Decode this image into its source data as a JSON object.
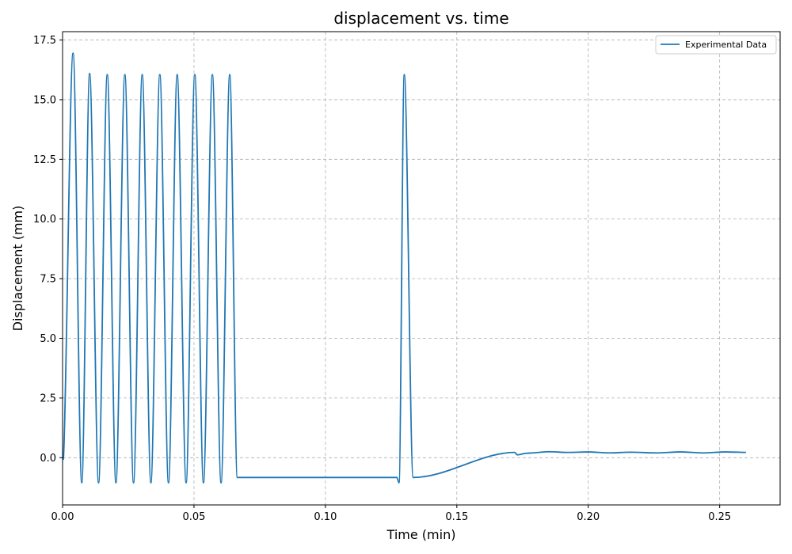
{
  "chart_data": {
    "type": "line",
    "title": "displacement vs. time",
    "xlabel": "Time (min)",
    "ylabel": "Displacement (mm)",
    "xlim": [
      0,
      0.273
    ],
    "ylim": [
      -1.98,
      17.85
    ],
    "xticks": [
      0.0,
      0.05,
      0.1,
      0.15,
      0.2,
      0.25
    ],
    "xtick_labels": [
      "0.00",
      "0.05",
      "0.10",
      "0.15",
      "0.20",
      "0.25"
    ],
    "yticks": [
      0.0,
      2.5,
      5.0,
      7.5,
      10.0,
      12.5,
      15.0,
      17.5
    ],
    "ytick_labels": [
      "0.0",
      "2.5",
      "5.0",
      "7.5",
      "10.0",
      "12.5",
      "15.0",
      "17.5"
    ],
    "grid": true,
    "legend_position": "top-right",
    "series": [
      {
        "name": "Experimental Data",
        "color": "#1f77b4",
        "x": [
          0.0,
          0.0004,
          0.004,
          0.0073,
          0.0103,
          0.0137,
          0.017,
          0.0203,
          0.0237,
          0.027,
          0.0303,
          0.0336,
          0.037,
          0.0403,
          0.0436,
          0.047,
          0.0503,
          0.0536,
          0.057,
          0.0603,
          0.0636,
          0.0665,
          0.1265,
          0.1272,
          0.128,
          0.13,
          0.1334,
          0.172,
          0.173,
          0.176,
          0.179,
          0.185,
          0.192,
          0.2,
          0.208,
          0.216,
          0.226,
          0.235,
          0.244,
          0.252,
          0.26
        ],
        "y": [
          0.0,
          0.1,
          16.95,
          -1.05,
          16.1,
          -1.05,
          16.05,
          -1.05,
          16.05,
          -1.05,
          16.05,
          -1.05,
          16.05,
          -1.05,
          16.05,
          -1.05,
          16.05,
          -1.05,
          16.05,
          -1.05,
          16.05,
          -0.83,
          -0.83,
          -0.83,
          -1.05,
          16.05,
          -0.83,
          0.22,
          0.12,
          0.18,
          0.2,
          0.25,
          0.22,
          0.24,
          0.2,
          0.23,
          0.2,
          0.24,
          0.2,
          0.24,
          0.22
        ]
      }
    ]
  }
}
